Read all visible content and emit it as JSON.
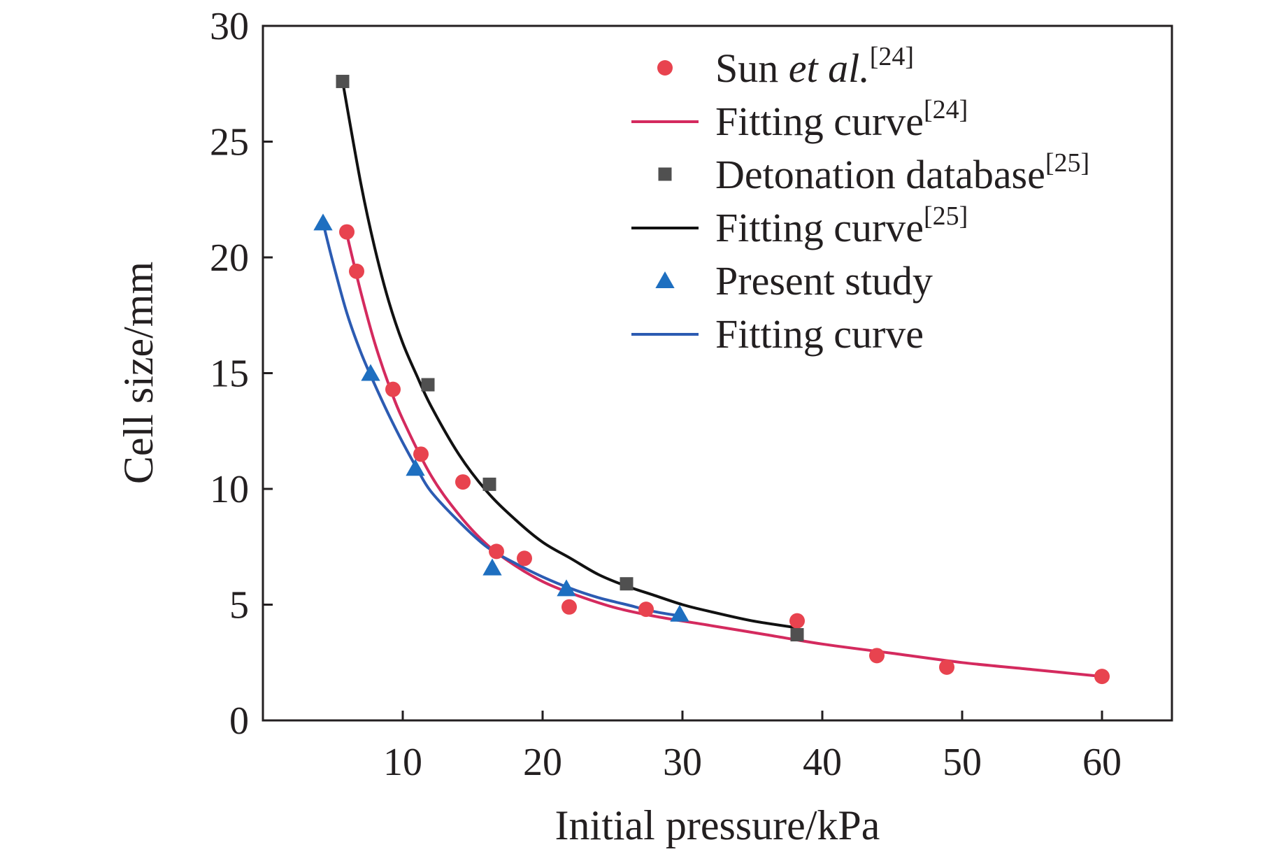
{
  "chart_data": {
    "type": "scatter",
    "xlabel": "Initial pressure/kPa",
    "ylabel": "Cell size/mm",
    "xlim": [
      0,
      65
    ],
    "ylim": [
      0,
      30
    ],
    "xticks": [
      10,
      20,
      30,
      40,
      50,
      60
    ],
    "yticks": [
      0,
      5,
      10,
      15,
      20,
      25,
      30
    ],
    "grid": false,
    "legend_position": "top-right",
    "series": [
      {
        "name": "Sun et al.[24]",
        "legend_parts": [
          "Sun ",
          "et al.",
          "[24]"
        ],
        "kind": "points",
        "marker": "circle",
        "color": "#e8434f",
        "x": [
          6.0,
          6.7,
          9.3,
          11.3,
          14.3,
          16.7,
          18.7,
          21.9,
          27.4,
          38.2,
          43.9,
          48.9,
          60.0
        ],
        "y": [
          21.1,
          19.4,
          14.3,
          11.5,
          10.3,
          7.3,
          7.0,
          4.9,
          4.8,
          4.3,
          2.8,
          2.3,
          1.9
        ]
      },
      {
        "name": "Fitting curve[24]",
        "legend_parts": [
          "Fitting curve",
          "",
          "[24]"
        ],
        "kind": "curve",
        "color": "#d42a5e",
        "x": [
          6,
          7,
          8,
          9,
          10,
          12,
          14,
          16,
          18,
          20,
          22,
          25,
          28,
          32,
          36,
          40,
          45,
          50,
          55,
          60
        ],
        "y": [
          21.0,
          18.5,
          16.3,
          14.5,
          13.0,
          10.6,
          8.9,
          7.6,
          6.7,
          6.0,
          5.5,
          4.9,
          4.5,
          4.1,
          3.7,
          3.3,
          2.9,
          2.5,
          2.2,
          1.9
        ]
      },
      {
        "name": "Detonation database[25]",
        "legend_parts": [
          "Detonation database",
          "",
          "[25]"
        ],
        "kind": "points",
        "marker": "square",
        "color": "#505050",
        "x": [
          5.7,
          11.8,
          16.2,
          26.0,
          38.2
        ],
        "y": [
          27.6,
          14.5,
          10.2,
          5.9,
          3.7
        ]
      },
      {
        "name": "Fitting curve[25]",
        "legend_parts": [
          "Fitting curve",
          "",
          "[25]"
        ],
        "kind": "curve",
        "color": "#111111",
        "x": [
          5.7,
          7,
          8,
          9,
          10,
          11,
          12,
          14,
          16,
          18,
          20,
          22,
          24,
          26,
          28,
          30,
          32,
          35,
          38.2
        ],
        "y": [
          27.6,
          23.2,
          20.4,
          18.1,
          16.3,
          14.9,
          13.6,
          11.5,
          9.9,
          8.7,
          7.7,
          7.0,
          6.3,
          5.8,
          5.4,
          5.0,
          4.7,
          4.3,
          4.0
        ]
      },
      {
        "name": "Present study",
        "legend_parts": [
          "Present study",
          "",
          ""
        ],
        "kind": "points",
        "marker": "triangle",
        "color": "#1e6fc0",
        "x": [
          4.3,
          7.7,
          10.9,
          16.4,
          21.7,
          29.8
        ],
        "y": [
          21.5,
          15.0,
          10.9,
          6.6,
          5.7,
          4.6
        ]
      },
      {
        "name": "Fitting curve",
        "legend_parts": [
          "Fitting curve",
          "",
          ""
        ],
        "kind": "curve",
        "color": "#2c5bb2",
        "x": [
          4.3,
          5,
          6,
          7,
          8,
          9,
          10,
          11,
          12,
          14,
          16,
          18,
          20,
          22,
          24,
          26,
          28,
          30
        ],
        "y": [
          21.5,
          19.8,
          17.6,
          15.9,
          14.5,
          13.2,
          12.0,
          10.9,
          9.9,
          8.6,
          7.5,
          6.8,
          6.2,
          5.7,
          5.3,
          5.0,
          4.7,
          4.5
        ]
      }
    ]
  }
}
